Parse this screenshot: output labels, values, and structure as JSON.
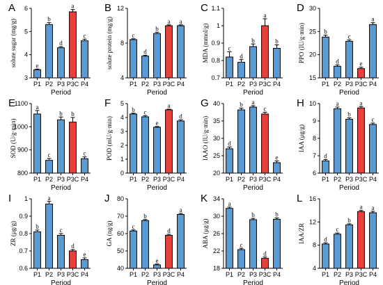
{
  "chart_data": [
    {
      "panel": "A",
      "type": "bar",
      "categories": [
        "P1",
        "P2",
        "P3",
        "P3C",
        "P4"
      ],
      "values": [
        3.35,
        5.3,
        4.3,
        5.85,
        4.6
      ],
      "errors": [
        0.03,
        0.08,
        0.05,
        0.1,
        0.07
      ],
      "letters": [
        "e",
        "b",
        "d",
        "a",
        "c"
      ],
      "ylabel": "solute sugar (mg/g)",
      "xlabel": "Period",
      "ylim": [
        3,
        6
      ],
      "yticks": [
        3,
        4,
        5,
        6
      ],
      "colors": [
        "#5b9bd5",
        "#5b9bd5",
        "#5b9bd5",
        "#e8413c",
        "#5b9bd5"
      ]
    },
    {
      "panel": "B",
      "type": "bar",
      "categories": [
        "P1",
        "P2",
        "P3",
        "P3C",
        "P4"
      ],
      "values": [
        8.4,
        6.5,
        9.1,
        10.0,
        10.0
      ],
      "errors": [
        0.1,
        0.1,
        0.15,
        0.1,
        0.1
      ],
      "letters": [
        "c",
        "d",
        "b",
        "a",
        "a"
      ],
      "ylabel": "solute protein (mg/g)",
      "xlabel": "Period",
      "ylim": [
        4,
        12
      ],
      "yticks": [
        4,
        8,
        12
      ],
      "colors": [
        "#5b9bd5",
        "#5b9bd5",
        "#5b9bd5",
        "#e8413c",
        "#5b9bd5"
      ]
    },
    {
      "panel": "C",
      "type": "bar",
      "categories": [
        "P1",
        "P2",
        "P3",
        "P3C",
        "P4"
      ],
      "values": [
        0.82,
        0.79,
        0.88,
        1.0,
        0.87
      ],
      "errors": [
        0.03,
        0.015,
        0.015,
        0.04,
        0.02
      ],
      "letters": [
        "c",
        "d",
        "b",
        "a",
        "b"
      ],
      "ylabel": "MDA (mmol/g)",
      "xlabel": "Period",
      "ylim": [
        0.7,
        1.1
      ],
      "yticks": [
        0.7,
        0.8,
        0.9,
        1.0,
        1.1
      ],
      "colors": [
        "#5b9bd5",
        "#5b9bd5",
        "#5b9bd5",
        "#e8413c",
        "#5b9bd5"
      ]
    },
    {
      "panel": "D",
      "type": "bar",
      "categories": [
        "P1",
        "P2",
        "P3",
        "P3C",
        "P4"
      ],
      "values": [
        23.8,
        17.5,
        22.9,
        17.0,
        26.5
      ],
      "errors": [
        0.4,
        0.3,
        0.3,
        0.3,
        0.4
      ],
      "letters": [
        "b",
        "d",
        "c",
        "e",
        "a"
      ],
      "ylabel": "PPO (IU/g·min)",
      "xlabel": "Period",
      "ylim": [
        15,
        30
      ],
      "yticks": [
        15,
        20,
        25,
        30
      ],
      "colors": [
        "#5b9bd5",
        "#5b9bd5",
        "#5b9bd5",
        "#e8413c",
        "#5b9bd5"
      ]
    },
    {
      "panel": "E",
      "type": "bar",
      "categories": [
        "P1",
        "P2",
        "P3",
        "P3C",
        "P4"
      ],
      "values": [
        1055,
        855,
        1030,
        1020,
        862
      ],
      "errors": [
        15,
        8,
        12,
        20,
        8
      ],
      "letters": [
        "a",
        "c",
        "b",
        "b",
        "c"
      ],
      "ylabel": "SOD (U/g·min)",
      "xlabel": "Period",
      "ylim": [
        800,
        1100
      ],
      "yticks": [
        800,
        900,
        1000,
        1100
      ],
      "colors": [
        "#5b9bd5",
        "#5b9bd5",
        "#5b9bd5",
        "#e8413c",
        "#5b9bd5"
      ]
    },
    {
      "panel": "F",
      "type": "bar",
      "categories": [
        "P1",
        "P2",
        "P3",
        "P3C",
        "P4"
      ],
      "values": [
        4.25,
        4.05,
        3.3,
        4.55,
        3.75
      ],
      "errors": [
        0.06,
        0.08,
        0.05,
        0.05,
        0.08
      ],
      "letters": [
        "b",
        "c",
        "e",
        "a",
        "d"
      ],
      "ylabel": "POD (mU/g·min)",
      "xlabel": "Period",
      "ylim": [
        0,
        5
      ],
      "yticks": [
        0,
        1,
        2,
        3,
        4,
        5
      ],
      "colors": [
        "#5b9bd5",
        "#5b9bd5",
        "#5b9bd5",
        "#e8413c",
        "#5b9bd5"
      ]
    },
    {
      "panel": "G",
      "type": "bar",
      "categories": [
        "P1",
        "P2",
        "P3",
        "P3C",
        "P4"
      ],
      "values": [
        27,
        38.2,
        39,
        37,
        23
      ],
      "errors": [
        0.5,
        0.5,
        0.4,
        0.5,
        0.5
      ],
      "letters": [
        "d",
        "b",
        "a",
        "c",
        "e"
      ],
      "ylabel": "IAAO (IU/g·min)",
      "xlabel": "Period",
      "ylim": [
        20,
        40
      ],
      "yticks": [
        20,
        25,
        30,
        35,
        40
      ],
      "colors": [
        "#5b9bd5",
        "#5b9bd5",
        "#5b9bd5",
        "#e8413c",
        "#5b9bd5"
      ]
    },
    {
      "panel": "H",
      "type": "bar",
      "categories": [
        "P1",
        "P2",
        "P3",
        "P3C",
        "P4"
      ],
      "values": [
        6.7,
        9.7,
        9.1,
        9.75,
        8.8
      ],
      "errors": [
        0.08,
        0.1,
        0.08,
        0.08,
        0.08
      ],
      "letters": [
        "d",
        "a",
        "b",
        "a",
        "c"
      ],
      "ylabel": "IAA (μg/g)",
      "xlabel": "Period",
      "ylim": [
        6,
        10
      ],
      "yticks": [
        6,
        7,
        8,
        9,
        10
      ],
      "colors": [
        "#5b9bd5",
        "#5b9bd5",
        "#5b9bd5",
        "#e8413c",
        "#5b9bd5"
      ]
    },
    {
      "panel": "I",
      "type": "bar",
      "categories": [
        "P1",
        "P2",
        "P3",
        "P3C",
        "P4"
      ],
      "values": [
        0.81,
        0.97,
        0.79,
        0.7,
        0.65
      ],
      "errors": [
        0.01,
        0.015,
        0.01,
        0.008,
        0.01
      ],
      "letters": [
        "b",
        "a",
        "c",
        "d",
        "e"
      ],
      "ylabel": "ZR (μg/g)",
      "xlabel": "Period",
      "ylim": [
        0.6,
        1.0
      ],
      "yticks": [
        0.6,
        0.7,
        0.8,
        0.9,
        1.0
      ],
      "colors": [
        "#5b9bd5",
        "#5b9bd5",
        "#5b9bd5",
        "#e8413c",
        "#5b9bd5"
      ]
    },
    {
      "panel": "J",
      "type": "bar",
      "categories": [
        "P1",
        "P2",
        "P3",
        "P3C",
        "P4"
      ],
      "values": [
        61.5,
        67.5,
        42,
        59,
        71
      ],
      "errors": [
        0.6,
        0.6,
        0.5,
        0.6,
        0.6
      ],
      "letters": [
        "c",
        "b",
        "e",
        "d",
        "a"
      ],
      "ylabel": "GA (ng/g)",
      "xlabel": "Period",
      "ylim": [
        40,
        80
      ],
      "yticks": [
        40,
        50,
        60,
        70,
        80
      ],
      "colors": [
        "#5b9bd5",
        "#5b9bd5",
        "#5b9bd5",
        "#e8413c",
        "#5b9bd5"
      ]
    },
    {
      "panel": "K",
      "type": "bar",
      "categories": [
        "P1",
        "P2",
        "P3",
        "P3C",
        "P4"
      ],
      "values": [
        31.8,
        22.3,
        29.2,
        20.3,
        29.3
      ],
      "errors": [
        0.3,
        0.3,
        0.3,
        0.3,
        0.3
      ],
      "letters": [
        "a",
        "c",
        "b",
        "d",
        "b"
      ],
      "ylabel": "ABA (μg/g)",
      "xlabel": "Period",
      "ylim": [
        18,
        34
      ],
      "yticks": [
        18,
        22,
        26,
        30,
        34
      ],
      "colors": [
        "#5b9bd5",
        "#5b9bd5",
        "#5b9bd5",
        "#e8413c",
        "#5b9bd5"
      ]
    },
    {
      "panel": "L",
      "type": "bar",
      "categories": [
        "P1",
        "P2",
        "P3",
        "P3C",
        "P4"
      ],
      "values": [
        8.2,
        9.9,
        11.5,
        13.8,
        13.6
      ],
      "errors": [
        0.2,
        0.2,
        0.2,
        0.2,
        0.25
      ],
      "letters": [
        "d",
        "c",
        "b",
        "a",
        "a"
      ],
      "ylabel": "IAA/ZR",
      "xlabel": "Period",
      "ylim": [
        4,
        16
      ],
      "yticks": [
        4,
        8,
        12,
        16
      ],
      "colors": [
        "#5b9bd5",
        "#5b9bd5",
        "#5b9bd5",
        "#e8413c",
        "#5b9bd5"
      ]
    }
  ]
}
